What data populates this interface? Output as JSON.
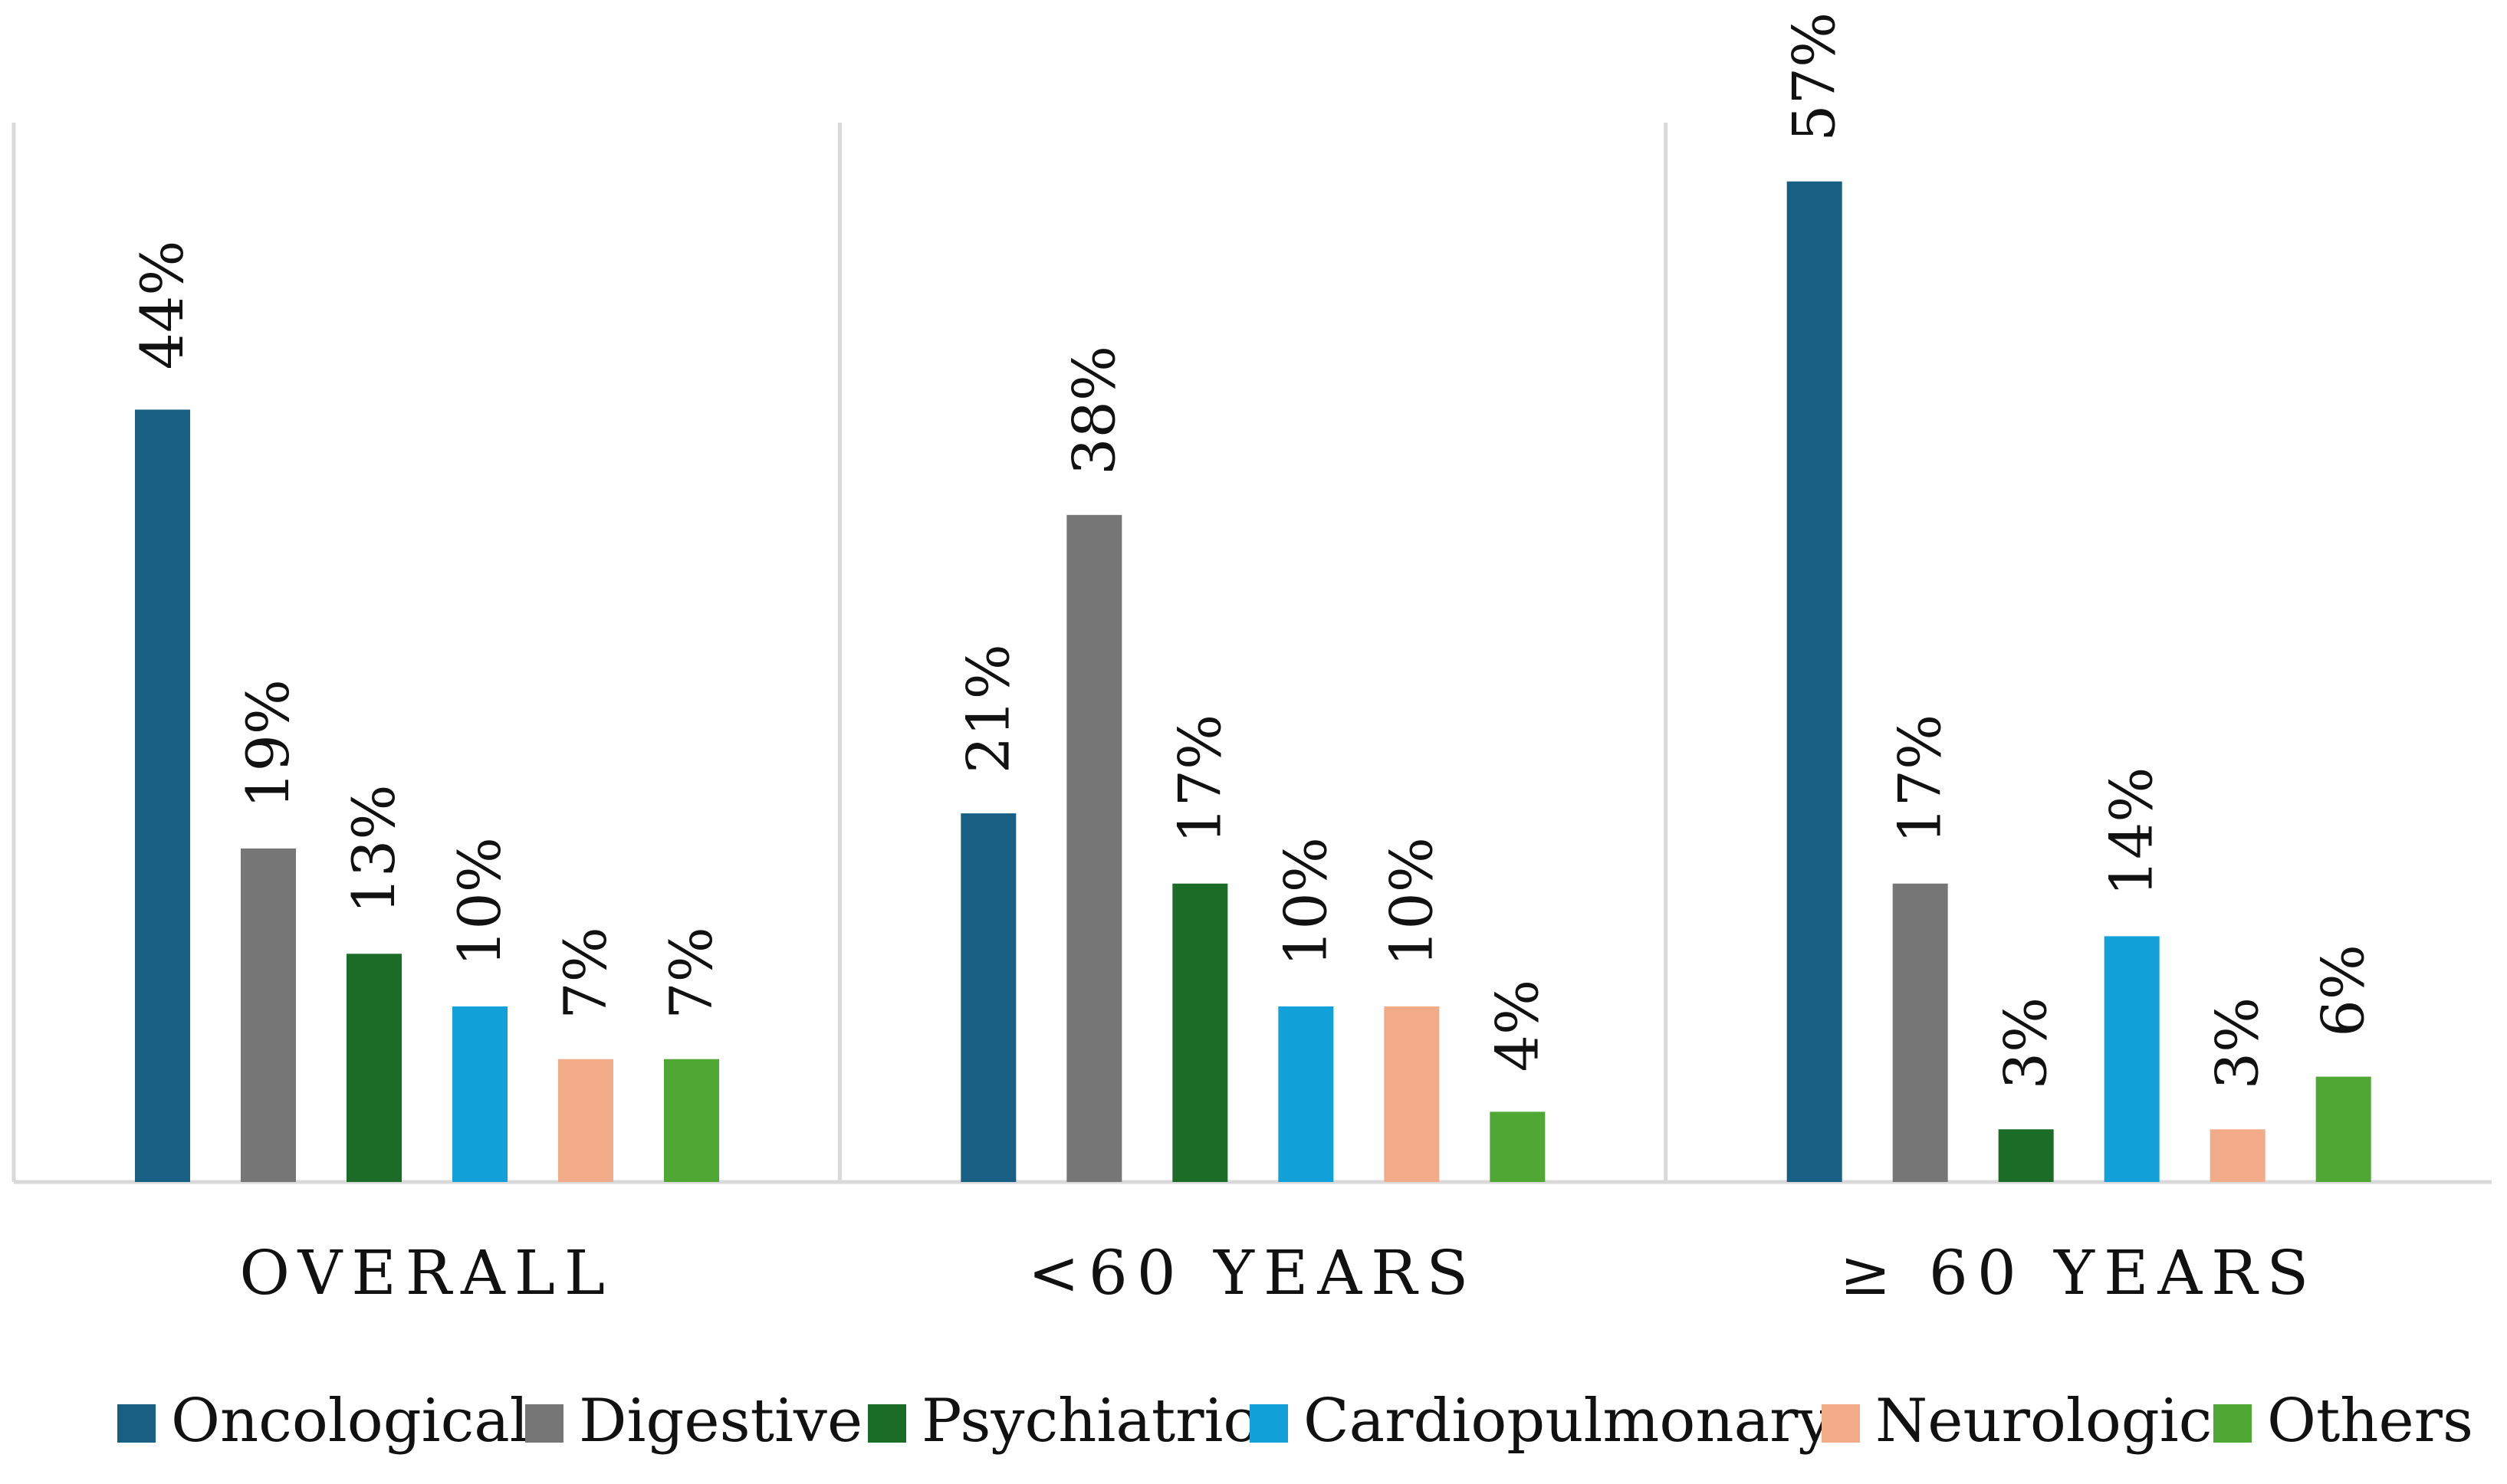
{
  "chart_data": {
    "type": "bar",
    "title": "",
    "xlabel": "",
    "ylabel": "",
    "ylim": [
      0,
      60
    ],
    "grid": false,
    "legend_position": "bottom",
    "categories": [
      "OVERALL",
      "<60 YEARS",
      "≥ 60 YEARS"
    ],
    "series": [
      {
        "name": "Oncological",
        "color": "#175F83",
        "values": [
          44,
          21,
          57
        ],
        "labels": [
          "44%",
          "21%",
          "57%"
        ]
      },
      {
        "name": "Digestive",
        "color": "#767676",
        "values": [
          19,
          38,
          17
        ],
        "labels": [
          "19%",
          "38%",
          "17%"
        ]
      },
      {
        "name": "Psychiatric",
        "color": "#1B6C26",
        "values": [
          13,
          17,
          3
        ],
        "labels": [
          "13%",
          "17%",
          "3%"
        ]
      },
      {
        "name": "Cardiopulmonary",
        "color": "#12A0D9",
        "values": [
          10,
          10,
          14
        ],
        "labels": [
          "10%",
          "10%",
          "14%"
        ]
      },
      {
        "name": "Neurologic",
        "color": "#F2AB88",
        "values": [
          7,
          10,
          3
        ],
        "labels": [
          "7%",
          "10%",
          "3%"
        ]
      },
      {
        "name": "Others",
        "color": "#4FA833",
        "values": [
          7,
          4,
          6
        ],
        "labels": [
          "7%",
          "4%",
          "6%"
        ]
      }
    ]
  }
}
